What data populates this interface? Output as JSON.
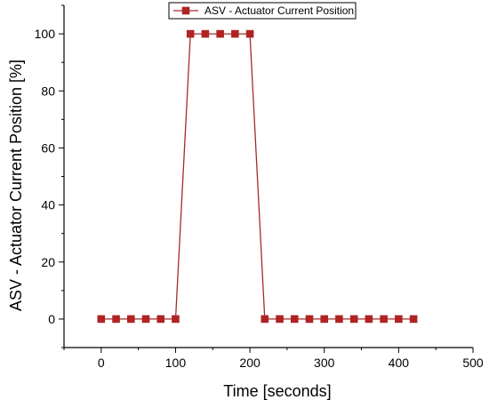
{
  "chart_data": {
    "type": "line",
    "title": "",
    "xlabel": "Time [seconds]",
    "ylabel": "ASV - Actuator Current Position [%]",
    "xlim": [
      -50,
      500
    ],
    "ylim": [
      -10,
      110
    ],
    "x_ticks": [
      0,
      100,
      200,
      300,
      400,
      500
    ],
    "y_ticks": [
      0,
      20,
      40,
      60,
      80,
      100
    ],
    "x_tick_labels": [
      "0",
      "100",
      "200",
      "300",
      "400",
      "500"
    ],
    "y_tick_labels": [
      "0",
      "20",
      "40",
      "60",
      "80",
      "100"
    ],
    "grid": false,
    "legend_position": "top-center",
    "series": [
      {
        "name": "ASV - Actuator Current Position",
        "color": "#a52a2a",
        "marker_color": "#b22222",
        "marker": "square",
        "x": [
          0,
          20,
          40,
          60,
          80,
          100,
          120,
          140,
          160,
          180,
          200,
          220,
          240,
          260,
          280,
          300,
          320,
          340,
          360,
          380,
          400,
          420
        ],
        "y": [
          0,
          0,
          0,
          0,
          0,
          0,
          100,
          100,
          100,
          100,
          100,
          0,
          0,
          0,
          0,
          0,
          0,
          0,
          0,
          0,
          0,
          0
        ]
      }
    ]
  }
}
